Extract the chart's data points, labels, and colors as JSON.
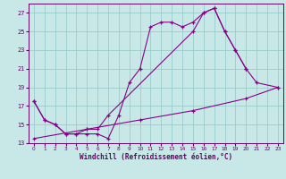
{
  "xlabel": "Windchill (Refroidissement éolien,°C)",
  "bg_color": "#c8e8e8",
  "line_color": "#880088",
  "grid_color": "#99cccc",
  "curve1_x": [
    0,
    1,
    2,
    3,
    4,
    5,
    6,
    7,
    8,
    9,
    10,
    11,
    12,
    13,
    14,
    15,
    16,
    17,
    18,
    19,
    20
  ],
  "curve1_y": [
    17.5,
    15.5,
    15.0,
    14.0,
    14.0,
    14.0,
    14.0,
    13.5,
    16.0,
    19.5,
    21.0,
    25.5,
    26.0,
    26.0,
    25.5,
    26.0,
    27.0,
    27.5,
    25.0,
    23.0,
    21.0
  ],
  "curve2_x": [
    0,
    1,
    2,
    3,
    4,
    5,
    6,
    7,
    15,
    16,
    17,
    18,
    19,
    20,
    21,
    23
  ],
  "curve2_y": [
    17.5,
    15.5,
    15.0,
    14.0,
    14.0,
    14.5,
    14.5,
    16.0,
    25.0,
    27.0,
    27.5,
    25.0,
    23.0,
    21.0,
    19.5,
    19.0
  ],
  "curve3_x": [
    0,
    5,
    10,
    15,
    20,
    23
  ],
  "curve3_y": [
    13.5,
    14.5,
    15.5,
    16.5,
    17.8,
    19.0
  ],
  "xlim": [
    -0.5,
    23.5
  ],
  "ylim": [
    13,
    28
  ],
  "yticks": [
    13,
    15,
    17,
    19,
    21,
    23,
    25,
    27
  ],
  "xticks": [
    0,
    1,
    2,
    3,
    4,
    5,
    6,
    7,
    8,
    9,
    10,
    11,
    12,
    13,
    14,
    15,
    16,
    17,
    18,
    19,
    20,
    21,
    22,
    23
  ]
}
